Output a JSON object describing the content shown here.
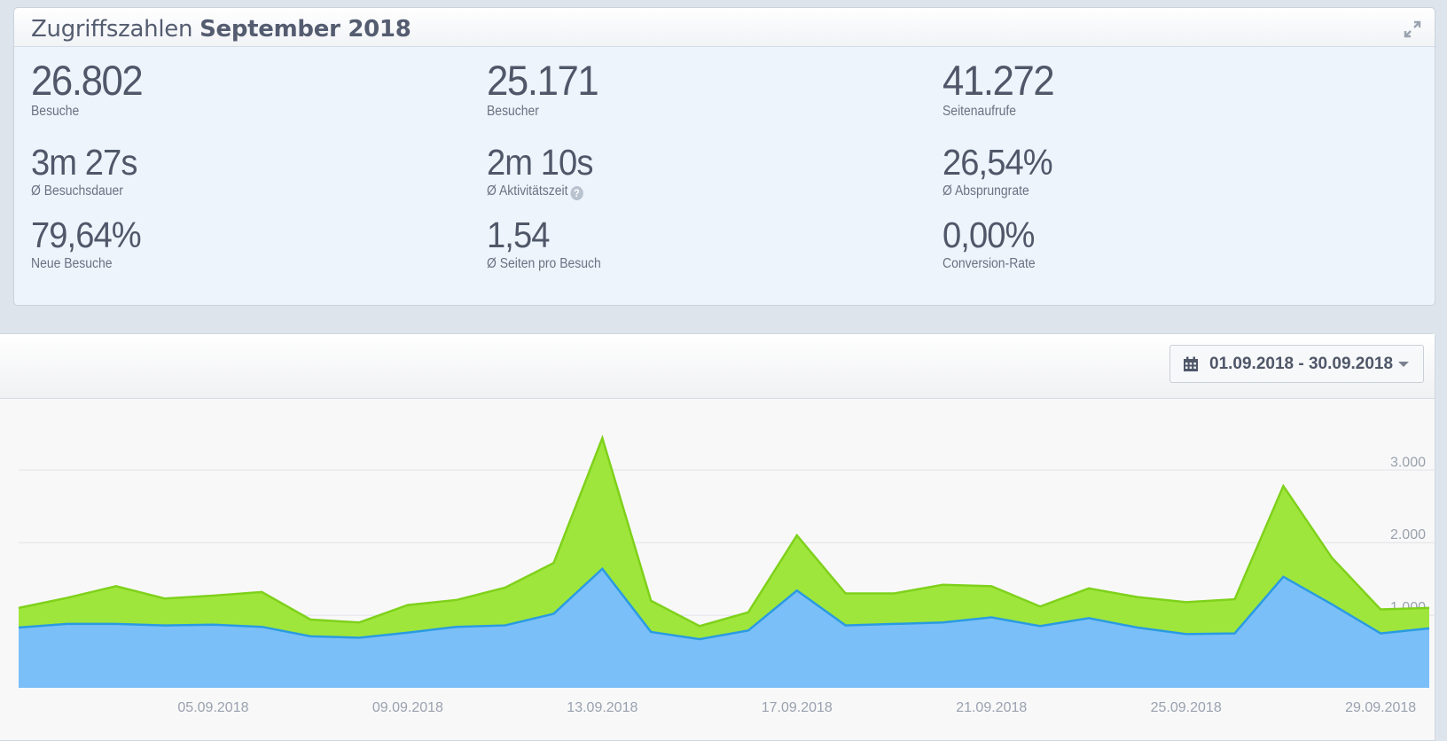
{
  "panel": {
    "title_prefix": "Zugriffszahlen",
    "title_bold": "September 2018"
  },
  "kpis": [
    {
      "value": "26.802",
      "label": "Besuche"
    },
    {
      "value": "25.171",
      "label": "Besucher"
    },
    {
      "value": "41.272",
      "label": "Seitenaufrufe"
    },
    {
      "value": "3m 27s",
      "label": "Ø Besuchsdauer"
    },
    {
      "value": "2m 10s",
      "label": "Ø Aktivitätszeit"
    },
    {
      "value": "26,54%",
      "label": "Ø Absprungrate"
    },
    {
      "value": "79,64%",
      "label": "Neue Besuche"
    },
    {
      "value": "1,54",
      "label": "Ø Seiten pro Besuch"
    },
    {
      "value": "0,00%",
      "label": "Conversion-Rate"
    }
  ],
  "date_range": {
    "label": "01.09.2018 - 30.09.2018"
  },
  "help_icon": "question-circle-icon",
  "colors": {
    "upper_area": "#9fe63c",
    "upper_line": "#7fd11b",
    "lower_area": "#7bbff8",
    "lower_line": "#2a9be2"
  },
  "chart_data": {
    "type": "area",
    "x": [
      "01.09.2018",
      "02.09.2018",
      "03.09.2018",
      "04.09.2018",
      "05.09.2018",
      "06.09.2018",
      "07.09.2018",
      "08.09.2018",
      "09.09.2018",
      "10.09.2018",
      "11.09.2018",
      "12.09.2018",
      "13.09.2018",
      "14.09.2018",
      "15.09.2018",
      "16.09.2018",
      "17.09.2018",
      "18.09.2018",
      "19.09.2018",
      "20.09.2018",
      "21.09.2018",
      "22.09.2018",
      "23.09.2018",
      "24.09.2018",
      "25.09.2018",
      "26.09.2018",
      "27.09.2018",
      "28.09.2018",
      "29.09.2018",
      "30.09.2018"
    ],
    "x_tick_labels": [
      "05.09.2018",
      "09.09.2018",
      "13.09.2018",
      "17.09.2018",
      "21.09.2018",
      "25.09.2018",
      "29.09.2018"
    ],
    "y_tick_labels": [
      "0",
      "1.000",
      "2.000",
      "3.000"
    ],
    "ylim": [
      0,
      3800
    ],
    "series": [
      {
        "values": [
          1100,
          1240,
          1400,
          1230,
          1270,
          1320,
          940,
          900,
          1140,
          1210,
          1380,
          1720,
          3440,
          1200,
          850,
          1040,
          2100,
          1300,
          1300,
          1420,
          1400,
          1120,
          1370,
          1250,
          1180,
          1220,
          2780,
          1790,
          1080,
          1100
        ]
      },
      {
        "values": [
          830,
          880,
          880,
          860,
          870,
          840,
          710,
          690,
          760,
          840,
          860,
          1020,
          1640,
          770,
          670,
          790,
          1340,
          860,
          880,
          900,
          970,
          850,
          960,
          830,
          740,
          750,
          1530,
          1150,
          750,
          820
        ]
      }
    ],
    "grid": true
  }
}
